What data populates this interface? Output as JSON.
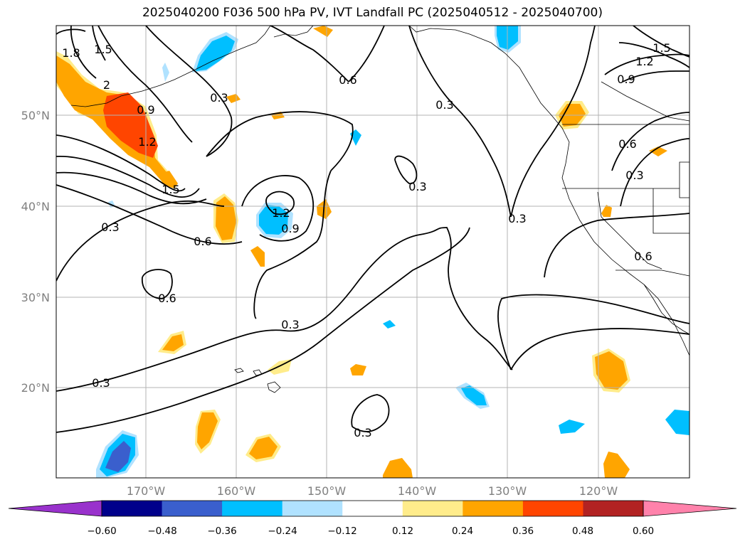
{
  "title": "2025040200 F036 500 hPa PV, IVT Landfall PC (2025040512 - 2025040700)",
  "map": {
    "lat_labels": [
      "50°N",
      "40°N",
      "30°N",
      "20°N"
    ],
    "lon_labels": [
      "170°W",
      "160°W",
      "150°W",
      "140°W",
      "130°W",
      "120°W"
    ],
    "contour_labels": [
      "1.8",
      "1.5",
      "2",
      "0.9",
      "1.2",
      "1.5",
      "0.3",
      "0.6",
      "0.3",
      "0.6",
      "1.2",
      "0.9",
      "0.3",
      "0.3",
      "0.3",
      "0.6",
      "0.3",
      "0.3",
      "0.3",
      "0.9",
      "1.2",
      "1.5",
      "0.6",
      "0.3",
      "0.6"
    ]
  },
  "colorbar": {
    "ticks": [
      "−0.60",
      "−0.48",
      "−0.36",
      "−0.24",
      "−0.12",
      "0.12",
      "0.24",
      "0.36",
      "0.48",
      "0.60"
    ],
    "colors": [
      "#9932cc",
      "#00008b",
      "#3a5fcd",
      "#00bfff",
      "#b0e2ff",
      "#ffffff",
      "#ffec8b",
      "#ffa500",
      "#ff4500",
      "#b22222",
      "#ff82ab"
    ]
  }
}
